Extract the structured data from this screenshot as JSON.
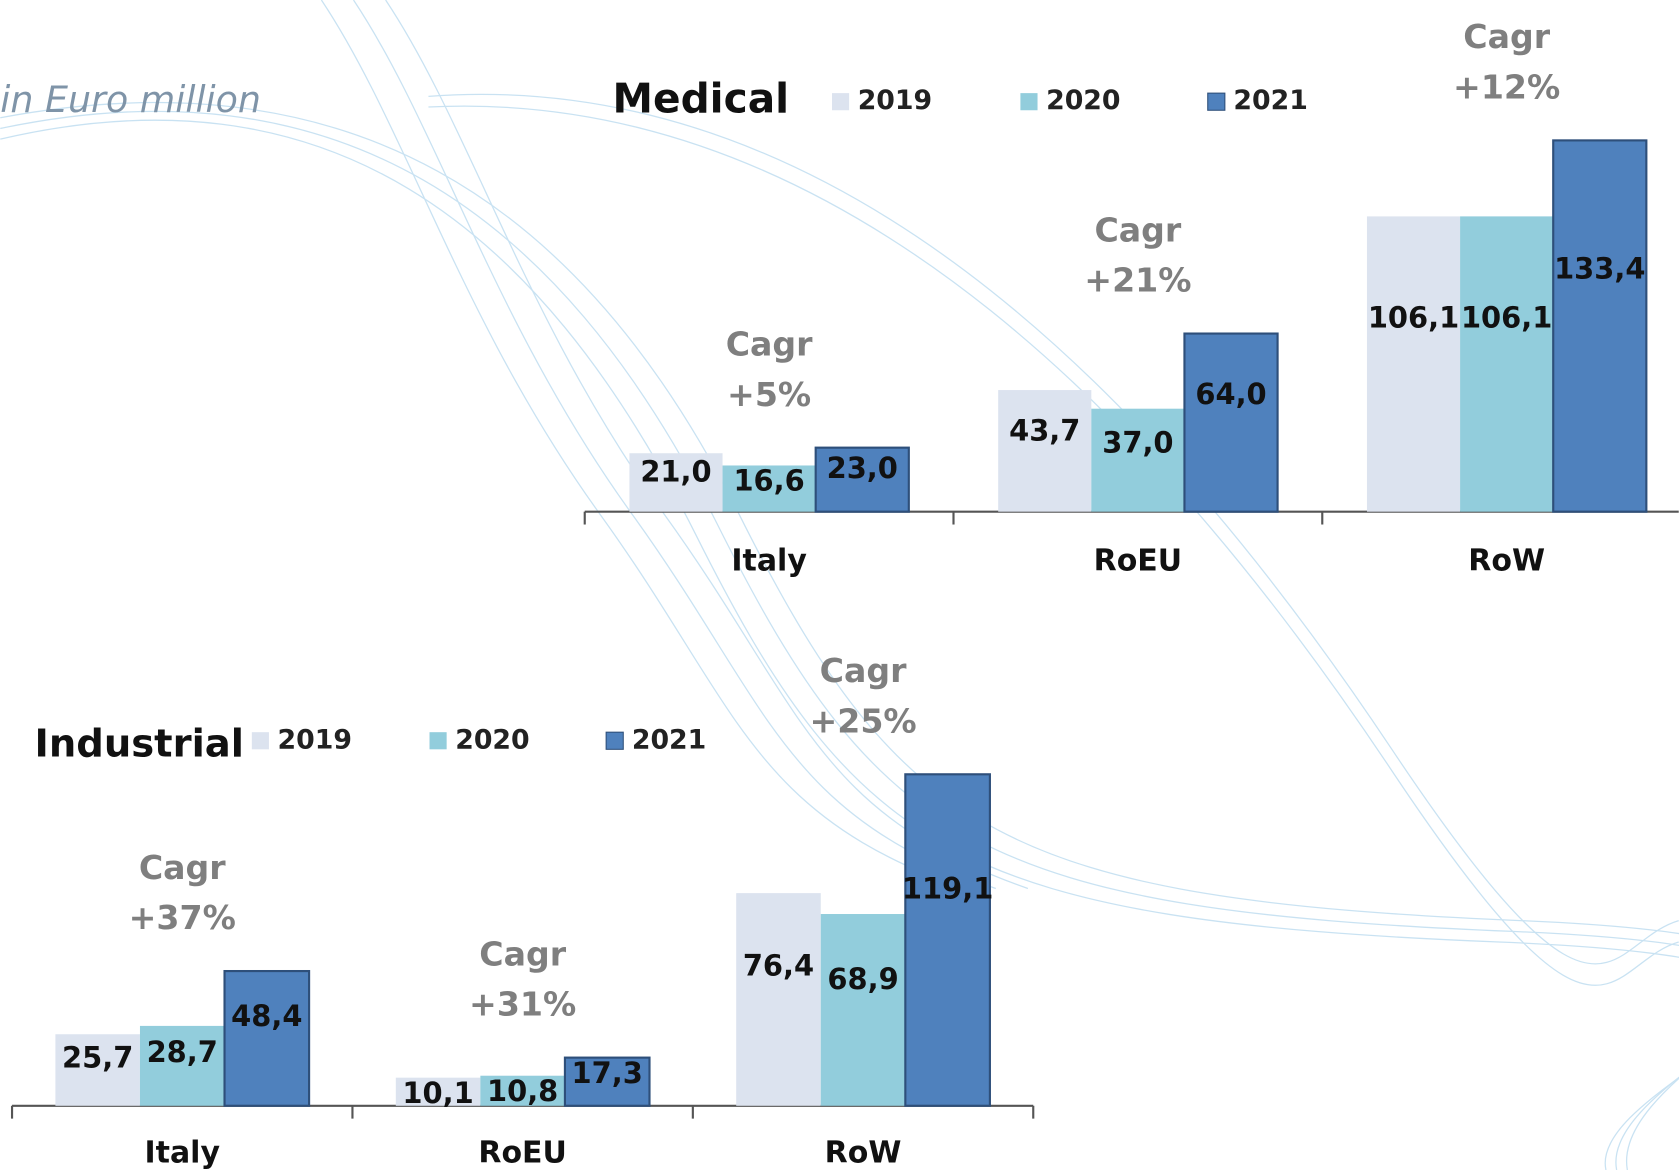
{
  "chart_data": [
    {
      "type": "bar",
      "title": "Medical",
      "subtitle": "in Euro million",
      "categories": [
        "Italy",
        "RoEU",
        "RoW"
      ],
      "series": [
        {
          "name": "2019",
          "color": "#dce3ef",
          "values": [
            21.0,
            43.7,
            106.1
          ],
          "value_labels": [
            "21,0",
            "43,7",
            "106,1"
          ]
        },
        {
          "name": "2020",
          "color": "#92cddc",
          "values": [
            16.6,
            37.0,
            106.1
          ],
          "value_labels": [
            "16,6",
            "37,0",
            "106,1"
          ]
        },
        {
          "name": "2021",
          "color": "#4f81bd",
          "values": [
            23.0,
            64.0,
            133.4
          ],
          "value_labels": [
            "23,0",
            "64,0",
            "133,4"
          ]
        }
      ],
      "annotations": [
        [
          "Cagr",
          "+5%"
        ],
        [
          "Cagr",
          "+21%"
        ],
        [
          "Cagr",
          "+12%"
        ]
      ]
    },
    {
      "type": "bar",
      "title": "Industrial",
      "categories": [
        "Italy",
        "RoEU",
        "RoW"
      ],
      "series": [
        {
          "name": "2019",
          "color": "#dce3ef",
          "values": [
            25.7,
            10.1,
            76.4
          ],
          "value_labels": [
            "25,7",
            "10,1",
            "76,4"
          ]
        },
        {
          "name": "2020",
          "color": "#92cddc",
          "values": [
            28.7,
            10.8,
            68.9
          ],
          "value_labels": [
            "28,7",
            "10,8",
            "68,9"
          ]
        },
        {
          "name": "2021",
          "color": "#4f81bd",
          "values": [
            48.4,
            17.3,
            119.1
          ],
          "value_labels": [
            "48,4",
            "17,3",
            "119,1"
          ]
        }
      ],
      "annotations": [
        [
          "Cagr",
          "+37%"
        ],
        [
          "Cagr",
          "+31%"
        ],
        [
          "Cagr",
          "+25%"
        ]
      ]
    }
  ]
}
